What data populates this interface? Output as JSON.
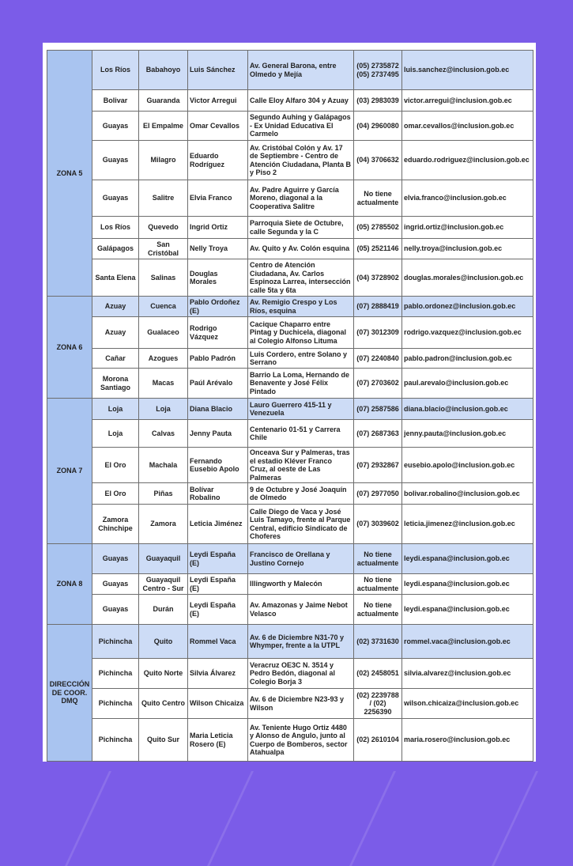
{
  "colors": {
    "background": "#7b5ce8",
    "zone_cell": "#a9c4f0",
    "highlight_row": "#cddcf6"
  },
  "zones": [
    {
      "name": "ZONA 5",
      "rows": [
        {
          "province": "Los Ríos",
          "city": "Babahoyo",
          "name": "Luis Sánchez",
          "address": "Av. General Barona, entre Olmedo y Mejía",
          "phone": "(05) 2735872 (05) 2737495",
          "email": "luis.sanchez@inclusion.gob.ec"
        },
        {
          "province": "Bolivar",
          "city": "Guaranda",
          "name": "Victor Arregui",
          "address": "Calle Eloy Alfaro 304 y Azuay",
          "phone": "(03) 2983039",
          "email": "victor.arregui@inclusion.gob.ec"
        },
        {
          "province": "Guayas",
          "city": "El Empalme",
          "name": "Omar Cevallos",
          "address": "Segundo Auhing y Galápagos - Ex Unidad Educativa El Carmelo",
          "phone": "(04) 2960080",
          "email": "omar.cevallos@inclusion.gob.ec"
        },
        {
          "province": "Guayas",
          "city": "Milagro",
          "name": "Eduardo Rodríguez",
          "address": "Av. Cristóbal Colón y Av. 17 de Septiembre - Centro de Atención Ciudadana, Planta B y Piso 2",
          "phone": "(04) 3706632",
          "email": "eduardo.rodriguez@inclusion.gob.ec"
        },
        {
          "province": "Guayas",
          "city": "Salitre",
          "name": "Elvia Franco",
          "address": "Av. Padre Aguirre y García Moreno, diagonal a la Cooperativa Salitre",
          "phone": "No tiene actualmente",
          "email": "elvia.franco@inclusion.gob.ec"
        },
        {
          "province": "Los Ríos",
          "city": "Quevedo",
          "name": "Ingrid Ortiz",
          "address": "Parroquia Siete de Octubre, calle Segunda y la C",
          "phone": "(05) 2785502",
          "email": "ingrid.ortiz@inclusion.gob.ec"
        },
        {
          "province": "Galápagos",
          "city": "San Cristóbal",
          "name": "Nelly Troya",
          "address": "Av. Quito y Av. Colón esquina",
          "phone": "(05) 2521146",
          "email": "nelly.troya@inclusion.gob.ec"
        },
        {
          "province": "Santa Elena",
          "city": "Salinas",
          "name": "Douglas Morales",
          "address": "Centro de Atención Ciudadana, Av. Carlos Espinoza Larrea, intersección calle 5ta y 6ta",
          "phone": "(04) 3728902",
          "email": "douglas.morales@inclusion.gob.ec"
        }
      ]
    },
    {
      "name": "ZONA 6",
      "rows": [
        {
          "province": "Azuay",
          "city": "Cuenca",
          "name": "Pablo Ordoñez (E)",
          "address": "Av. Remigio Crespo y Los Ríos, esquina",
          "phone": "(07) 2888419",
          "email": "pablo.ordonez@inclusion.gob.ec"
        },
        {
          "province": "Azuay",
          "city": "Gualaceo",
          "name": "Rodrigo Vázquez",
          "address": "Cacique Chaparro entre Pintag y Duchicela, diagonal al Colegio Alfonso Lituma",
          "phone": "(07) 3012309",
          "email": "rodrigo.vazquez@inclusion.gob.ec"
        },
        {
          "province": "Cañar",
          "city": "Azogues",
          "name": "Pablo Padrón",
          "address": "Luis Cordero, entre Solano y Serrano",
          "phone": "(07) 2240840",
          "email": "pablo.padron@inclusion.gob.ec"
        },
        {
          "province": "Morona Santiago",
          "city": "Macas",
          "name": "Paúl Arévalo",
          "address": "Barrio La Loma, Hernando de Benavente y José Félix Pintado",
          "phone": "(07) 2703602",
          "email": "paul.arevalo@inclusion.gob.ec"
        }
      ]
    },
    {
      "name": "ZONA 7",
      "rows": [
        {
          "province": "Loja",
          "city": "Loja",
          "name": "Diana Blacio",
          "address": "Lauro Guerrero 415-11 y Venezuela",
          "phone": "(07) 2587586",
          "email": "diana.blacio@inclusion.gob.ec"
        },
        {
          "province": "Loja",
          "city": "Calvas",
          "name": "Jenny Pauta",
          "address": "Centenario 01-51 y Carrera Chile",
          "phone": "(07) 2687363",
          "email": "jenny.pauta@inclusion.gob.ec"
        },
        {
          "province": "El Oro",
          "city": "Machala",
          "name": "Fernando Eusebio Apolo",
          "address": "Onceava Sur y Palmeras, tras el estadio Kléver Franco Cruz, al oeste de Las Palmeras",
          "phone": "(07) 2932867",
          "email": "eusebio.apolo@inclusion.gob.ec"
        },
        {
          "province": "El Oro",
          "city": "Piñas",
          "name": "Bolívar Robalino",
          "address": "9 de Octubre y José Joaquín de Olmedo",
          "phone": "(07) 2977050",
          "email": "bolivar.robalino@inclusion.gob.ec"
        },
        {
          "province": "Zamora Chinchipe",
          "city": "Zamora",
          "name": "Leticia Jiménez",
          "address": "Calle Diego de Vaca y José Luis Tamayo, frente al Parque Central, edificio Sindicato de Choferes",
          "phone": "(07) 3039602",
          "email": "leticia.jimenez@inclusion.gob.ec"
        }
      ]
    },
    {
      "name": "ZONA 8",
      "rows": [
        {
          "province": "Guayas",
          "city": "Guayaquil",
          "name": "Leydi España (E)",
          "address": "Francisco de Orellana y Justino Cornejo",
          "phone": "No tiene actualmente",
          "email": "leydi.espana@inclusion.gob.ec"
        },
        {
          "province": "Guayas",
          "city": "Guayaquil Centro - Sur",
          "name": "Leydi España (E)",
          "address": "Illingworth y Malecón",
          "phone": "No tiene actualmente",
          "email": "leydi.espana@inclusion.gob.ec"
        },
        {
          "province": "Guayas",
          "city": "Durán",
          "name": "Leydi España (E)",
          "address": "Av. Amazonas y Jaime Nebot Velasco",
          "phone": "No tiene actualmente",
          "email": "leydi.espana@inclusion.gob.ec"
        }
      ]
    },
    {
      "name": "DIRECCIÓN DE COOR. DMQ",
      "rows": [
        {
          "province": "Pichincha",
          "city": "Quito",
          "name": "Rommel Vaca",
          "address": "Av. 6 de Diciembre N31-70 y Whymper, frente a la UTPL",
          "phone": "(02) 3731630",
          "email": "rommel.vaca@inclusion.gob.ec"
        },
        {
          "province": "Pichincha",
          "city": "Quito Norte",
          "name": "Silvia Álvarez",
          "address": "Veracruz OE3C N. 3514 y Pedro Bedón, diagonal al Colegio Borja 3",
          "phone": "(02) 2458051",
          "email": "silvia.alvarez@inclusion.gob.ec"
        },
        {
          "province": "Pichincha",
          "city": "Quito Centro",
          "name": "Wilson Chicaiza",
          "address": "Av. 6 de Diciembre N23-93 y Wilson",
          "phone": "(02) 2239788 / (02) 2256390",
          "email": "wilson.chicaiza@inclusion.gob.ec"
        },
        {
          "province": "Pichincha",
          "city": "Quito Sur",
          "name": "Maria Leticia Rosero (E)",
          "address": "Av. Teniente Hugo Ortiz 4480 y Alonso de Angulo, junto al Cuerpo de Bomberos, sector Atahualpa",
          "phone": "(02) 2610104",
          "email": "maria.rosero@inclusion.gob.ec"
        }
      ]
    }
  ]
}
